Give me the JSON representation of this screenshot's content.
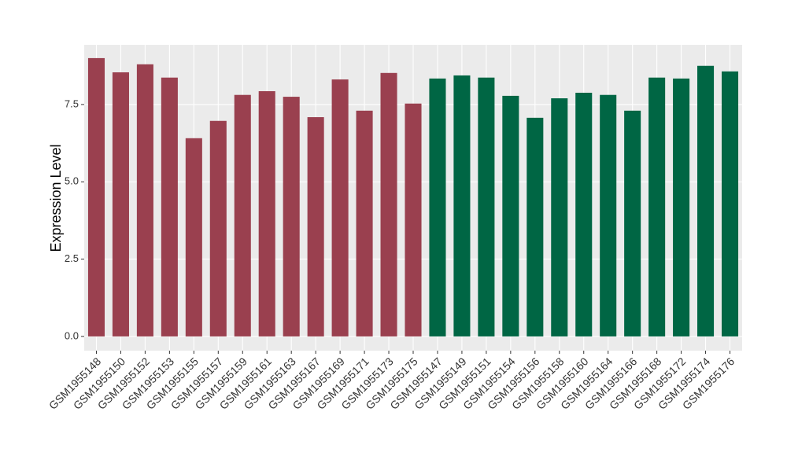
{
  "chart_data": {
    "type": "bar",
    "y_label": "Expression Level",
    "categories": [
      "GSM1955148",
      "GSM1955150",
      "GSM1955152",
      "GSM1955153",
      "GSM1955155",
      "GSM1955157",
      "GSM1955159",
      "GSM1955161",
      "GSM1955163",
      "GSM1955167",
      "GSM1955169",
      "GSM1955171",
      "GSM1955173",
      "GSM1955175",
      "GSM1955147",
      "GSM1955149",
      "GSM1955151",
      "GSM1955154",
      "GSM1955156",
      "GSM1955158",
      "GSM1955160",
      "GSM1955164",
      "GSM1955166",
      "GSM1955168",
      "GSM1955172",
      "GSM1955174",
      "GSM1955176"
    ],
    "values": [
      9.0,
      8.54,
      8.8,
      8.37,
      6.41,
      6.97,
      7.81,
      7.93,
      7.75,
      7.09,
      8.31,
      7.3,
      8.52,
      7.53,
      8.34,
      8.44,
      8.37,
      7.78,
      7.07,
      7.7,
      7.88,
      7.81,
      7.3,
      8.37,
      8.34,
      8.75,
      8.57
    ],
    "colors": [
      "#9a404f",
      "#9a404f",
      "#9a404f",
      "#9a404f",
      "#9a404f",
      "#9a404f",
      "#9a404f",
      "#9a404f",
      "#9a404f",
      "#9a404f",
      "#9a404f",
      "#9a404f",
      "#9a404f",
      "#9a404f",
      "#006644",
      "#006644",
      "#006644",
      "#006644",
      "#006644",
      "#006644",
      "#006644",
      "#006644",
      "#006644",
      "#006644",
      "#006644",
      "#006644",
      "#006644"
    ],
    "ylim": [
      -0.46,
      9.43
    ],
    "yticks": [
      {
        "value": 0,
        "label": "0.0"
      },
      2.5,
      {
        "value": 5,
        "label": "5.0"
      },
      7.5
    ],
    "grid": true
  }
}
